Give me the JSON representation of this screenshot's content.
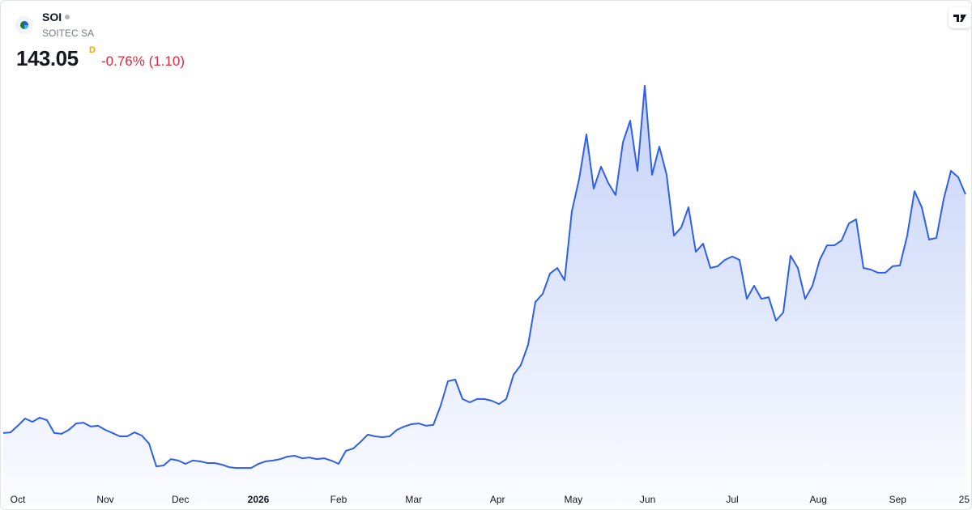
{
  "header": {
    "symbol": "SOI",
    "name": "SOITEC SA",
    "price": "143.05",
    "interval": "D",
    "change": "-0.76% (1.10)"
  },
  "chart_data": {
    "type": "area",
    "color": "#2f5fe8",
    "values": [
      27.8,
      28.1,
      31.3,
      34.8,
      33.2,
      35.2,
      34.0,
      27.8,
      27.4,
      29.3,
      32.4,
      32.8,
      30.9,
      31.3,
      29.3,
      27.8,
      26.2,
      26.2,
      28.1,
      26.6,
      22.7,
      11.7,
      12.1,
      15.2,
      14.5,
      12.9,
      14.5,
      14.1,
      13.3,
      13.3,
      12.5,
      11.3,
      10.9,
      10.9,
      10.9,
      12.9,
      14.1,
      14.5,
      15.2,
      16.4,
      16.8,
      15.6,
      16.0,
      15.2,
      15.6,
      14.5,
      12.9,
      19.2,
      20.3,
      23.5,
      27.0,
      26.2,
      25.8,
      26.2,
      29.3,
      30.9,
      32.1,
      32.4,
      31.3,
      31.7,
      41.0,
      52.8,
      53.6,
      44.2,
      42.6,
      44.2,
      44.2,
      43.4,
      41.8,
      44.2,
      55.9,
      60.6,
      70.4,
      91.1,
      95.0,
      104.8,
      107.5,
      101.6,
      134.9,
      150.5,
      172.0,
      145.8,
      156.4,
      148.5,
      142.7,
      168.1,
      178.6,
      154.4,
      195.5,
      152.5,
      166.1,
      152.5,
      123.1,
      127.0,
      136.8,
      115.3,
      119.2,
      107.5,
      108.3,
      111.4,
      113.0,
      111.4,
      92.6,
      98.9,
      92.6,
      93.4,
      82.1,
      86.0,
      113.4,
      107.5,
      92.6,
      98.9,
      111.4,
      118.4,
      118.4,
      120.8,
      129.0,
      131.0,
      107.5,
      106.7,
      105.2,
      105.2,
      108.3,
      108.7,
      123.1,
      144.6,
      136.8,
      121.2,
      122.0,
      140.7,
      154.4,
      151.3,
      143.05
    ],
    "xlim": [
      0,
      132
    ],
    "ylim": [
      0,
      230
    ],
    "xticks": [
      {
        "value": 2,
        "label": "Oct"
      },
      {
        "value": 14,
        "label": "Nov"
      },
      {
        "value": 24.3,
        "label": "Dec"
      },
      {
        "value": 35,
        "label": "2026"
      },
      {
        "value": 46,
        "label": "Feb"
      },
      {
        "value": 56.3,
        "label": "Mar"
      },
      {
        "value": 67.8,
        "label": "Apr"
      },
      {
        "value": 78.2,
        "label": "May"
      },
      {
        "value": 88.4,
        "label": "Jun"
      },
      {
        "value": 100,
        "label": "Jul"
      },
      {
        "value": 111.8,
        "label": "Aug"
      },
      {
        "value": 122.7,
        "label": "Sep"
      },
      {
        "value": 131.9,
        "label": "25"
      }
    ]
  }
}
